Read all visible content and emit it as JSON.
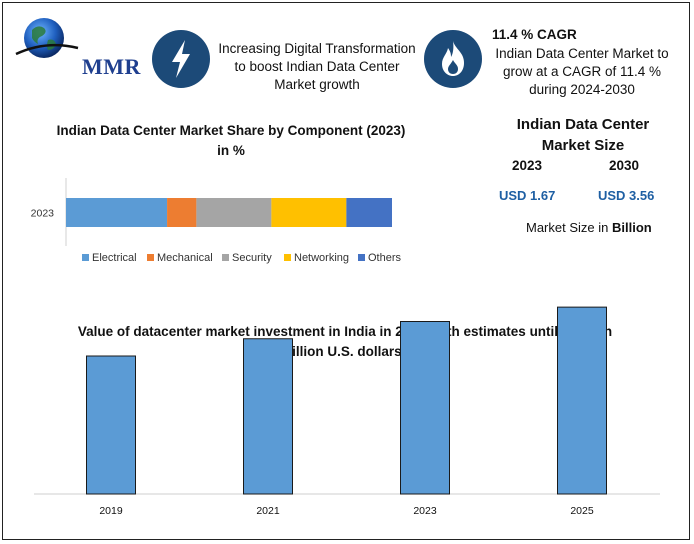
{
  "brand": {
    "logo_text": "MMR"
  },
  "header": {
    "headline": "Increasing Digital Transformation to boost Indian Data Center Market growth",
    "cagr_title": "11.4 % CAGR",
    "cagr_text": "Indian Data Center Market to grow at a CAGR of 11.4 % during 2024-2030"
  },
  "market_size": {
    "title": "Indian Data Center Market Size",
    "year_a": "2023",
    "year_b": "2030",
    "value_a": "USD 1.67",
    "value_b": "USD 3.56",
    "note_prefix": "Market Size in ",
    "note_unit": "Billion"
  },
  "colors": {
    "electrical": "#5b9bd5",
    "mechanical": "#ed7d31",
    "security": "#a5a5a5",
    "networking": "#ffc000",
    "others": "#4472c4",
    "investment_bar": "#5b9bd5",
    "icon_circle": "#1c4a78"
  },
  "icons": {
    "headline_icon": "lightning-bolt-icon",
    "cagr_icon": "flame-icon"
  },
  "chart_data": [
    {
      "type": "bar",
      "orientation": "horizontal",
      "stacked": true,
      "title": "Indian Data Center Market Share by Component (2023) in %",
      "categories": [
        "2023"
      ],
      "series": [
        {
          "name": "Electrical",
          "values": [
            31
          ]
        },
        {
          "name": "Mechanical",
          "values": [
            9
          ]
        },
        {
          "name": "Security",
          "values": [
            23
          ]
        },
        {
          "name": "Networking",
          "values": [
            23
          ]
        },
        {
          "name": "Others",
          "values": [
            14
          ]
        }
      ],
      "legend": "bottom",
      "grid": false
    },
    {
      "type": "bar",
      "title": "Value of datacenter market investment in India in 2019, with estimates until 2025 (in billion U.S. dollars)",
      "categories": [
        "2019",
        "2021",
        "2023",
        "2025"
      ],
      "values": [
        2.4,
        2.7,
        3.0,
        3.25
      ],
      "ylim": [
        0,
        4
      ],
      "grid": false,
      "legend": "none"
    }
  ]
}
